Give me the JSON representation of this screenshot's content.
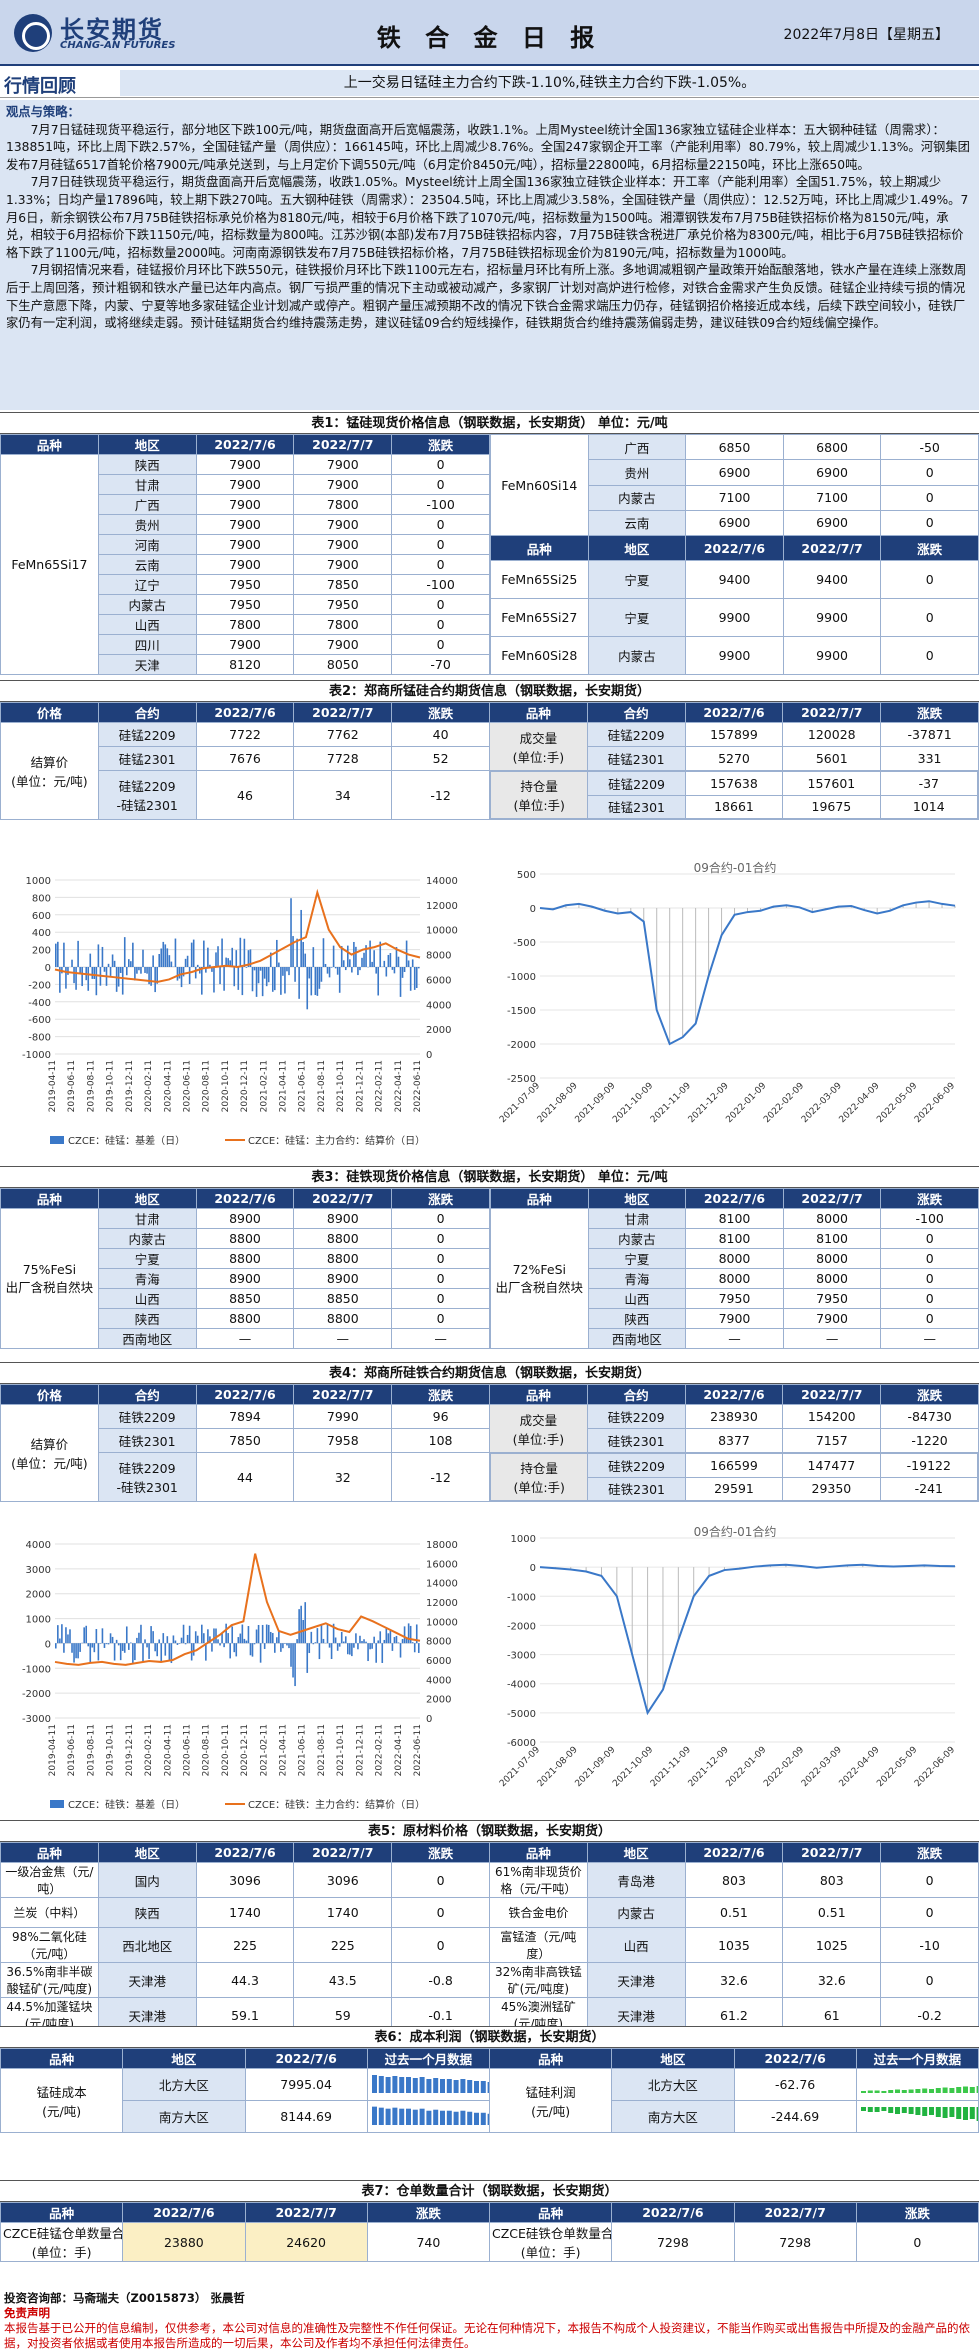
{
  "header": {
    "logo_cn": "长安期货",
    "logo_en": "CHANG-AN FUTURES",
    "title": "铁 合 金 日 报",
    "date": "2022年7月8日【星期五】"
  },
  "review": {
    "label": "行情回顾",
    "text": "上一交易日锰硅主力合约下跌-1.10%,硅铁主力合约下跌-1.05%。"
  },
  "views": {
    "heading": "观点与策略：",
    "p1": "7月7日锰硅现货平稳运行，部分地区下跌100元/吨，期货盘面高开后宽幅震荡，收跌1.1%。上周Mysteel统计全国136家独立锰硅企业样本：五大钢种硅锰（周需求）：138851吨，环比上周下跌2.57%，全国硅锰产量（周供应）：166145吨，环比上周减少8.76%。全国247家钢企开工率（产能利用率）80.79%，较上周减少1.13%。河钢集团发布7月硅锰6517首轮价格7900元/吨承兑送到，与上月定价下调550元/吨（6月定价8450元/吨），招标量22800吨，6月招标量22150吨，环比上涨650吨。",
    "p2": "7月7日硅铁现货平稳运行，期货盘面高开后宽幅震荡，收跌1.05%。Mysteel统计上周全国136家独立硅铁企业样本：开工率（产能利用率）全国51.75%，较上期减少1.33%；日均产量17896吨，较上期下跌270吨。五大钢种硅铁（周需求）：23504.5吨，环比上周减少3.58%，全国硅铁产量（周供应）：12.52万吨，环比上周减少1.49%。7月6日，新余钢铁公布7月75B硅铁招标承兑价格为8180元/吨，相较于6月价格下跌了1070元/吨，招标数量为1500吨。湘潭钢铁发布7月75B硅铁招标价格为8150元/吨，承兑，相较于6月招标价下跌1150元/吨，招标数量为800吨。江苏沙钢(本部)发布7月75B硅铁招标内容，7月75B硅铁含税进厂承兑价格为8300元/吨，相比于6月75B硅铁招标价格下跌了1100元/吨，招标数量2000吨。河南南源钢铁发布7月75B硅铁招标价格，7月75B硅铁招标现金价为8190元/吨，招标数量为1000吨。",
    "p3": "7月钢招情况来看，硅锰报价月环比下跌550元，硅铁报价月环比下跌1100元左右，招标量月环比有所上涨。多地调减粗钢产量政策开始酝酿落地，铁水产量在连续上涨数周后于上周回落，预计粗钢和铁水产量已达年内高点。钢厂亏损严重的情况下主动或被动减产，多家钢厂计划对高炉进行检修，对铁合金需求产生负反馈。硅锰企业持续亏损的情况下生产意愿下降，内蒙、宁夏等地多家硅锰企业计划减产或停产。粗钢产量压减预期不改的情况下铁合金需求端压力仍存，硅锰钢招价格接近成本线，后续下跌空间较小，硅铁厂家仍有一定利润，或将继续走弱。预计硅锰期货合约维持震荡走势，建议硅锰09合约短线操作，硅铁期货合约维持震荡偏弱走势，建议硅铁09合约短线偏空操作。"
  },
  "t1": {
    "caption": "表1：锰硅现货价格信息（钢联数据，长安期货）  单位：元/吨",
    "heads": [
      "品种",
      "地区",
      "2022/7/6",
      "2022/7/7",
      "涨跌"
    ],
    "left_name": "FeMn65Si17",
    "left_rows": [
      [
        "陕西",
        "7900",
        "7900",
        "0"
      ],
      [
        "甘肃",
        "7900",
        "7900",
        "0"
      ],
      [
        "广西",
        "7900",
        "7800",
        "-100"
      ],
      [
        "贵州",
        "7900",
        "7900",
        "0"
      ],
      [
        "河南",
        "7900",
        "7900",
        "0"
      ],
      [
        "云南",
        "7900",
        "7900",
        "0"
      ],
      [
        "辽宁",
        "7950",
        "7850",
        "-100"
      ],
      [
        "内蒙古",
        "7950",
        "7950",
        "0"
      ],
      [
        "山西",
        "7800",
        "7800",
        "0"
      ],
      [
        "四川",
        "7900",
        "7900",
        "0"
      ],
      [
        "天津",
        "8120",
        "8050",
        "-70"
      ]
    ],
    "r1_name": "FeMn60Si14",
    "r1_rows": [
      [
        "广西",
        "6850",
        "6800",
        "-50"
      ],
      [
        "贵州",
        "6900",
        "6900",
        "0"
      ],
      [
        "内蒙古",
        "7100",
        "7100",
        "0"
      ],
      [
        "云南",
        "6900",
        "6900",
        "0"
      ]
    ],
    "r_heads": [
      "品种",
      "地区",
      "2022/7/6",
      "2022/7/7",
      "涨跌"
    ],
    "r2": [
      [
        "FeMn65Si25",
        "宁夏",
        "9400",
        "9400",
        "0"
      ],
      [
        "FeMn65Si27",
        "宁夏",
        "9900",
        "9900",
        "0"
      ],
      [
        "FeMn60Si28",
        "内蒙古",
        "9900",
        "9900",
        "0"
      ]
    ]
  },
  "t2": {
    "caption": "表2：郑商所锰硅合约期货信息（钢联数据，长安期货）",
    "heads": [
      "价格",
      "合约",
      "2022/7/6",
      "2022/7/7",
      "涨跌",
      "品种",
      "合约",
      "2022/7/6",
      "2022/7/7",
      "涨跌"
    ],
    "price_label": "结算价\n(单位：元/吨)",
    "rows": [
      [
        "硅锰2209",
        "7722",
        "7762",
        "40"
      ],
      [
        "硅锰2301",
        "7676",
        "7728",
        "52"
      ],
      [
        "硅锰2209\n-硅锰2301",
        "46",
        "34",
        "-12"
      ]
    ],
    "vol_label": "成交量\n(单位:手)",
    "oi_label": "持仓量\n(单位:手)",
    "vol": [
      [
        "硅锰2209",
        "157899",
        "120028",
        "-37871"
      ],
      [
        "硅锰2301",
        "5270",
        "5601",
        "331"
      ]
    ],
    "oi": [
      [
        "硅锰2209",
        "157638",
        "157601",
        "-37"
      ],
      [
        "硅锰2301",
        "18661",
        "19675",
        "1014"
      ]
    ]
  },
  "t3": {
    "caption": "表3：硅铁现货价格信息（钢联数据，长安期货）  单位：元/吨",
    "heads": [
      "品种",
      "地区",
      "2022/7/6",
      "2022/7/7",
      "涨跌"
    ],
    "left_name": "75%FeSi\n出厂含税自然块",
    "left_rows": [
      [
        "甘肃",
        "8900",
        "8900",
        "0"
      ],
      [
        "内蒙古",
        "8800",
        "8800",
        "0"
      ],
      [
        "宁夏",
        "8800",
        "8800",
        "0"
      ],
      [
        "青海",
        "8900",
        "8900",
        "0"
      ],
      [
        "山西",
        "8850",
        "8850",
        "0"
      ],
      [
        "陕西",
        "8800",
        "8800",
        "0"
      ],
      [
        "西南地区",
        "—",
        "—",
        "—"
      ]
    ],
    "right_name": "72%FeSi\n出厂含税自然块",
    "right_rows": [
      [
        "甘肃",
        "8100",
        "8000",
        "-100"
      ],
      [
        "内蒙古",
        "8100",
        "8100",
        "0"
      ],
      [
        "宁夏",
        "8000",
        "8000",
        "0"
      ],
      [
        "青海",
        "8000",
        "8000",
        "0"
      ],
      [
        "山西",
        "7950",
        "7950",
        "0"
      ],
      [
        "陕西",
        "7900",
        "7900",
        "0"
      ],
      [
        "西南地区",
        "—",
        "—",
        "—"
      ]
    ]
  },
  "t4": {
    "caption": "表4：郑商所硅铁合约期货信息（钢联数据，长安期货）",
    "heads": [
      "价格",
      "合约",
      "2022/7/6",
      "2022/7/7",
      "涨跌",
      "品种",
      "合约",
      "2022/7/6",
      "2022/7/7",
      "涨跌"
    ],
    "price_label": "结算价\n(单位：元/吨)",
    "rows": [
      [
        "硅铁2209",
        "7894",
        "7990",
        "96"
      ],
      [
        "硅铁2301",
        "7850",
        "7958",
        "108"
      ],
      [
        "硅铁2209\n-硅铁2301",
        "44",
        "32",
        "-12"
      ]
    ],
    "vol_label": "成交量\n(单位:手)",
    "oi_label": "持仓量\n(单位:手)",
    "vol": [
      [
        "硅铁2209",
        "238930",
        "154200",
        "-84730"
      ],
      [
        "硅铁2301",
        "8377",
        "7157",
        "-1220"
      ]
    ],
    "oi": [
      [
        "硅铁2209",
        "166599",
        "147477",
        "-19122"
      ],
      [
        "硅铁2301",
        "29591",
        "29350",
        "-241"
      ]
    ]
  },
  "t5": {
    "caption": "表5：原材料价格（钢联数据，长安期货）",
    "heads": [
      "品种",
      "地区",
      "2022/7/6",
      "2022/7/7",
      "涨跌",
      "品种",
      "地区",
      "2022/7/6",
      "2022/7/7",
      "涨跌"
    ],
    "rows": [
      [
        "一级冶金焦（元/吨）",
        "国内",
        "3096",
        "3096",
        "0",
        "61%南非现货价格（元/干吨）",
        "青岛港",
        "803",
        "803",
        "0"
      ],
      [
        "兰炭（中料）",
        "陕西",
        "1740",
        "1740",
        "0",
        "铁合金电价",
        "内蒙古",
        "0.51",
        "0.51",
        "0"
      ],
      [
        "98%二氧化硅（元/吨）",
        "西北地区",
        "225",
        "225",
        "0",
        "富锰渣（元/吨度）",
        "山西",
        "1035",
        "1025",
        "-10"
      ],
      [
        "36.5%南非半碳酸锰矿(元/吨度)",
        "天津港",
        "44.3",
        "43.5",
        "-0.8",
        "32%南非高铁锰矿(元/吨度)",
        "天津港",
        "32.6",
        "32.6",
        "0"
      ],
      [
        "44.5%加蓬锰块(元/吨度)",
        "天津港",
        "59.1",
        "59",
        "-0.1",
        "45%澳洲锰矿(元/吨度)",
        "天津港",
        "61.2",
        "61",
        "-0.2"
      ]
    ]
  },
  "t6": {
    "caption": "表6：成本利润（钢联数据，长安期货）",
    "heads": [
      "品种",
      "地区",
      "2022/7/6",
      "过去一个月数据",
      "品种",
      "地区",
      "2022/7/6",
      "过去一个月数据"
    ],
    "cost_label": "锰硅成本\n(元/吨)",
    "profit_label": "锰硅利润\n(元/吨)",
    "cost": [
      [
        "北方大区",
        "7995.04"
      ],
      [
        "南方大区",
        "8144.69"
      ]
    ],
    "profit": [
      [
        "北方大区",
        "-62.76"
      ],
      [
        "南方大区",
        "-244.69"
      ]
    ]
  },
  "t7": {
    "caption": "表7：仓单数量合计（钢联数据，长安期货）",
    "heads": [
      "品种",
      "2022/7/6",
      "2022/7/7",
      "涨跌",
      "品种",
      "2022/7/6",
      "2022/7/7",
      "涨跌"
    ],
    "row": [
      "CZCE硅锰仓单数量合计\n(单位：手)",
      "23880",
      "24620",
      "740",
      "CZCE硅铁仓单数量合计\n(单位：手)",
      "7298",
      "7298",
      "0"
    ]
  },
  "footer": {
    "dept": "投资咨询部：马斋瑞夫（Z0015873）  张晨哲",
    "disc_title": "免责声明",
    "disc": "本报告基于已公开的信息编制，仅供参考，本公司对信息的准确性及完整性不作任何保证。无论在何种情况下，本报告不构成个人投资建议，不能当作购买或出售报告中所提及的金融产品的依据，对投资者依据或者使用本报告所造成的一切后果，本公司及作者均不承担任何法律责任。"
  },
  "colors": {
    "navy": "#1f3f7a",
    "light": "#dbe5f3",
    "orange": "#e8711d",
    "bar": "#3a78c8"
  },
  "chart_data": [
    {
      "type": "bar+line",
      "id": "sm_left",
      "x_ticks": [
        "2019-04-11",
        "2019-06-11",
        "2019-08-11",
        "2019-10-11",
        "2019-12-11",
        "2020-02-11",
        "2020-04-11",
        "2020-06-11",
        "2020-08-11",
        "2020-10-11",
        "2020-12-11",
        "2021-02-11",
        "2021-04-11",
        "2021-06-11",
        "2021-08-11",
        "2021-10-11",
        "2021-12-11",
        "2022-02-11",
        "2022-04-11",
        "2022-06-11"
      ],
      "y_left_ticks": [
        "1000",
        "800",
        "600",
        "400",
        "200",
        "0",
        "-200",
        "-400",
        "-600",
        "-800",
        "-1000"
      ],
      "y_right_ticks": [
        "14000",
        "12000",
        "10000",
        "8000",
        "6000",
        "4000",
        "2000",
        "0"
      ],
      "legend": [
        "CZCE：硅锰：基差（日）",
        "CZCE：硅锰：主力合约：结算价（日）"
      ],
      "line_points": [
        6800,
        6600,
        6500,
        6400,
        6300,
        6200,
        6100,
        6000,
        5900,
        5800,
        6000,
        6400,
        6600,
        6900,
        7000,
        7100,
        7000,
        7200,
        7500,
        8000,
        8500,
        9000,
        9400,
        13000,
        10000,
        8600,
        8000,
        8400,
        8600,
        8900,
        8400,
        8000,
        7762
      ]
    },
    {
      "type": "line+bar",
      "id": "sm_right",
      "title": "09合约-01合约",
      "y_ticks": [
        "500",
        "0",
        "-500",
        "-1000",
        "-1500",
        "-2000",
        "-2500"
      ],
      "x_ticks": [
        "2021-07-09",
        "2021-08-09",
        "2021-09-09",
        "2021-10-09",
        "2021-11-09",
        "2021-12-09",
        "2022-01-09",
        "2022-02-09",
        "2022-03-09",
        "2022-04-09",
        "2022-05-09",
        "2022-06-09"
      ],
      "points": [
        0,
        -20,
        40,
        60,
        20,
        -40,
        -80,
        -60,
        -200,
        -1500,
        -2000,
        -1900,
        -1700,
        -1000,
        -400,
        -100,
        -60,
        -40,
        20,
        40,
        10,
        -60,
        -20,
        20,
        30,
        -30,
        -80,
        -40,
        40,
        80,
        100,
        60,
        34
      ]
    },
    {
      "type": "bar+line",
      "id": "sf_left",
      "x_ticks": [
        "2019-04-11",
        "2019-06-11",
        "2019-08-11",
        "2019-10-11",
        "2019-12-11",
        "2020-02-11",
        "2020-04-11",
        "2020-06-11",
        "2020-08-11",
        "2020-10-11",
        "2020-12-11",
        "2021-02-11",
        "2021-04-11",
        "2021-06-11",
        "2021-08-11",
        "2021-10-11",
        "2021-12-11",
        "2022-02-11",
        "2022-04-11",
        "2022-06-11"
      ],
      "y_left_ticks": [
        "4000",
        "3000",
        "2000",
        "1000",
        "0",
        "-1000",
        "-2000",
        "-3000"
      ],
      "y_right_ticks": [
        "18000",
        "16000",
        "14000",
        "12000",
        "10000",
        "8000",
        "6000",
        "4000",
        "2000",
        "0"
      ],
      "legend": [
        "CZCE：硅铁：基差（日）",
        "CZCE：硅铁：主力合约：结算价（日）"
      ],
      "line_points": [
        5800,
        5600,
        5500,
        5700,
        5800,
        5600,
        5500,
        5700,
        5900,
        5800,
        6000,
        6600,
        7000,
        7800,
        8600,
        9600,
        10000,
        17000,
        12000,
        9000,
        8600,
        9000,
        9400,
        9800,
        9200,
        8900,
        10500,
        10000,
        9400,
        8800,
        8200,
        7990
      ]
    },
    {
      "type": "line+bar",
      "id": "sf_right",
      "title": "09合约-01合约",
      "y_ticks": [
        "1000",
        "0",
        "-1000",
        "-2000",
        "-3000",
        "-4000",
        "-5000",
        "-6000"
      ],
      "x_ticks": [
        "2021-07-09",
        "2021-08-09",
        "2021-09-09",
        "2021-10-09",
        "2021-11-09",
        "2021-12-09",
        "2022-01-09",
        "2022-02-09",
        "2022-03-09",
        "2022-04-09",
        "2022-05-09",
        "2022-06-09"
      ],
      "points": [
        0,
        -40,
        -80,
        -150,
        -300,
        -1000,
        -3000,
        -5000,
        -4200,
        -2500,
        -1000,
        -300,
        -100,
        -50,
        20,
        60,
        80,
        40,
        -20,
        20,
        60,
        80,
        40,
        20,
        40,
        60,
        40,
        32
      ]
    }
  ]
}
